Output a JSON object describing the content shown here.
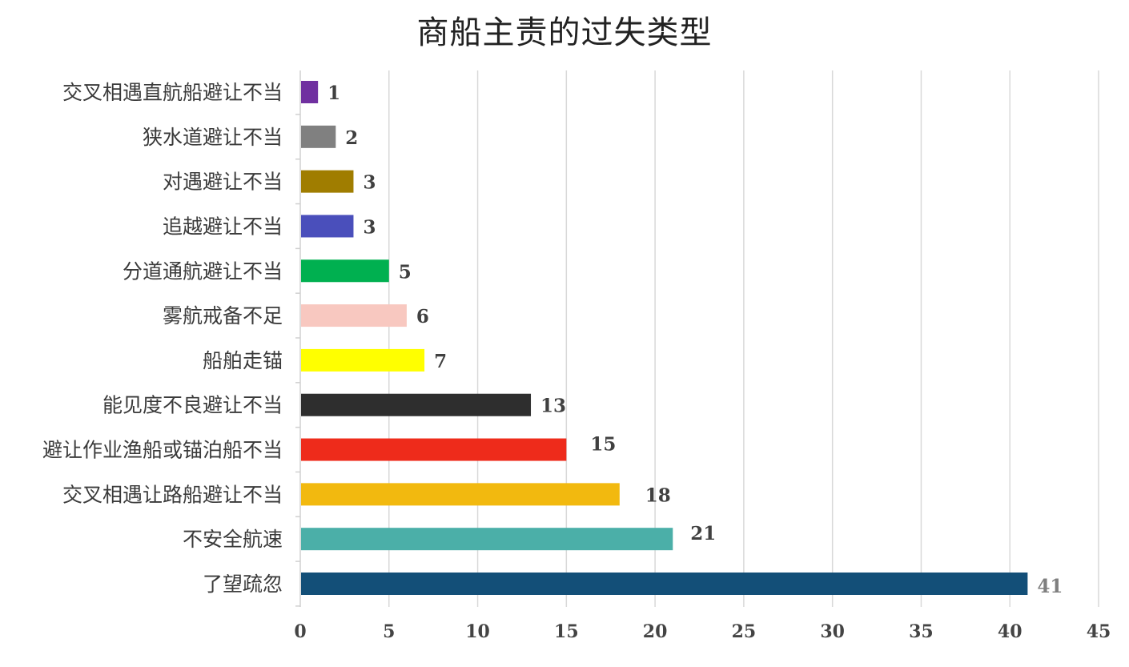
{
  "chart_data": {
    "type": "bar",
    "orientation": "horizontal",
    "title": "商船主责的过失类型",
    "xlabel": "",
    "ylabel": "",
    "xlim": [
      0,
      45
    ],
    "x_ticks": [
      "0",
      "5",
      "10",
      "15",
      "20",
      "25",
      "30",
      "35",
      "40",
      "45"
    ],
    "grid": true,
    "categories": [
      "交叉相遇直航船避让不当",
      "狭水道避让不当",
      "对遇避让不当",
      "追越避让不当",
      "分道通航避让不当",
      "雾航戒备不足",
      "船舶走锚",
      "能见度不良避让不当",
      "避让作业渔船或锚泊船不当",
      "交叉相遇让路船避让不当",
      "不安全航速",
      "了望疏忽"
    ],
    "values": [
      1,
      2,
      3,
      3,
      5,
      6,
      7,
      13,
      15,
      18,
      21,
      41
    ],
    "data_labels": [
      "1",
      "2",
      "3",
      "3",
      "5",
      "6",
      "7",
      "13",
      "15",
      "18",
      "21",
      "41"
    ],
    "colors": [
      "#7030A0",
      "#808080",
      "#A07D00",
      "#4A4FBB",
      "#00B050",
      "#F8C8C0",
      "#FFFF00",
      "#2E2E2E",
      "#EE2B1B",
      "#F2B90F",
      "#4BAFA8",
      "#134F78"
    ],
    "label_colors": [
      "#404040",
      "#404040",
      "#404040",
      "#404040",
      "#404040",
      "#404040",
      "#404040",
      "#404040",
      "#404040",
      "#404040",
      "#404040",
      "#7F7F7F"
    ]
  }
}
